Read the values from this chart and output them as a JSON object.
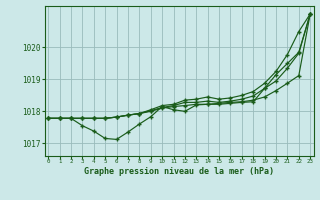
{
  "title": "Graphe pression niveau de la mer (hPa)",
  "background_color": "#cce8e8",
  "grid_color": "#99bbbb",
  "line_color": "#1a5c1a",
  "marker_color": "#1a5c1a",
  "ylim": [
    1016.6,
    1021.3
  ],
  "xlim": [
    -0.3,
    23.3
  ],
  "yticks": [
    1017,
    1018,
    1019,
    1020
  ],
  "xticks": [
    0,
    1,
    2,
    3,
    4,
    5,
    6,
    7,
    8,
    9,
    10,
    11,
    12,
    13,
    14,
    15,
    16,
    17,
    18,
    19,
    20,
    21,
    22,
    23
  ],
  "series1": [
    1017.78,
    1017.78,
    1017.78,
    1017.55,
    1017.38,
    1017.15,
    1017.12,
    1017.35,
    1017.6,
    1017.83,
    1018.15,
    1018.05,
    1018.0,
    1018.2,
    1018.22,
    1018.22,
    1018.25,
    1018.28,
    1018.3,
    1018.72,
    1019.15,
    1019.5,
    1019.85,
    1021.05
  ],
  "series2": [
    1017.78,
    1017.78,
    1017.78,
    1017.78,
    1017.78,
    1017.78,
    1017.82,
    1017.88,
    1017.93,
    1018.0,
    1018.1,
    1018.15,
    1018.18,
    1018.22,
    1018.22,
    1018.25,
    1018.28,
    1018.3,
    1018.35,
    1018.45,
    1018.65,
    1018.88,
    1019.12,
    1021.05
  ],
  "series3": [
    1017.78,
    1017.78,
    1017.78,
    1017.78,
    1017.78,
    1017.78,
    1017.82,
    1017.88,
    1017.93,
    1018.02,
    1018.12,
    1018.18,
    1018.28,
    1018.28,
    1018.32,
    1018.28,
    1018.32,
    1018.38,
    1018.48,
    1018.72,
    1018.95,
    1019.35,
    1019.82,
    1021.05
  ],
  "series_top": [
    1017.78,
    1017.78,
    1017.78,
    1017.78,
    1017.78,
    1017.78,
    1017.82,
    1017.88,
    1017.93,
    1018.05,
    1018.18,
    1018.22,
    1018.35,
    1018.38,
    1018.45,
    1018.38,
    1018.42,
    1018.5,
    1018.62,
    1018.88,
    1019.25,
    1019.78,
    1020.5,
    1021.05
  ]
}
